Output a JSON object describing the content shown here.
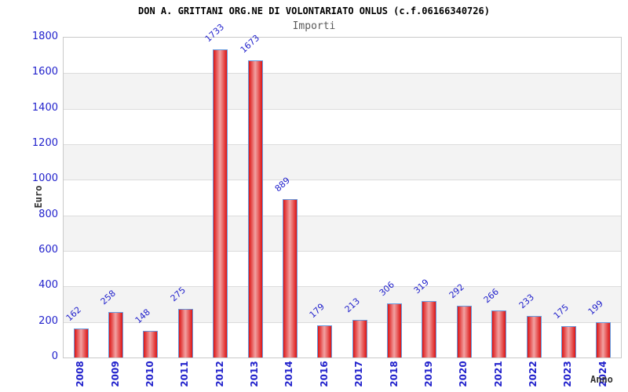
{
  "title": "DON A. GRITTANI ORG.NE DI VOLONTARIATO ONLUS (c.f.06166340726)",
  "subtitle": "Importi",
  "chart_data": {
    "type": "bar",
    "title": "DON A. GRITTANI ORG.NE DI VOLONTARIATO ONLUS (c.f.06166340726)",
    "subtitle": "Importi",
    "xlabel": "Anno",
    "ylabel": "Euro",
    "categories": [
      "2008",
      "2009",
      "2010",
      "2011",
      "2012",
      "2013",
      "2014",
      "2016",
      "2017",
      "2018",
      "2019",
      "2020",
      "2021",
      "2022",
      "2023",
      "2024"
    ],
    "values": [
      162,
      258,
      148,
      275,
      1733,
      1673,
      889,
      179,
      213,
      306,
      319,
      292,
      266,
      233,
      175,
      199
    ],
    "ylim": [
      0,
      1800
    ],
    "ytick_step": 200,
    "yticks": [
      0,
      200,
      400,
      600,
      800,
      1000,
      1200,
      1400,
      1600,
      1800
    ],
    "grid": "horizontal-bands",
    "legend": "none",
    "colors": {
      "label_blue": "#2222cc",
      "bar_edge_red": "#dc1414",
      "bar_center_red": "#f2a2a2",
      "bar_border_blue": "#6699dd",
      "band_gray": "#f3f3f3",
      "gridline": "#dcdcdc",
      "plot_border": "#c9c9c9",
      "title_color": "#000000",
      "subtitle_color": "#5a5a5a",
      "axis_title_color": "#333333"
    }
  }
}
